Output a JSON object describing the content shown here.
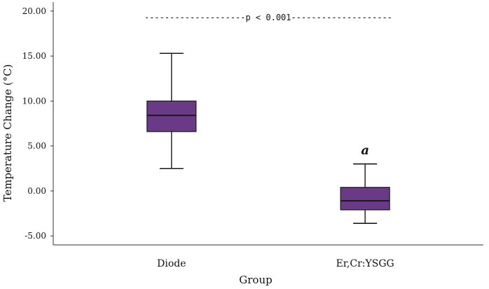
{
  "chart_data": {
    "type": "box",
    "xlabel": "Group",
    "ylabel": "Temperature Change (°C)",
    "ylim": [
      -6.0,
      21.0
    ],
    "yticks": [
      "-5.00",
      "0.00",
      "5.00",
      "10.00",
      "15.00",
      "20.00"
    ],
    "grid": false,
    "categories": [
      "Diode",
      "Er,Cr:YSGG"
    ],
    "boxes": [
      {
        "category": "Diode",
        "whisker_low": 2.5,
        "q1": 6.6,
        "median": 8.4,
        "q3": 10.0,
        "whisker_high": 15.3,
        "annotation": ""
      },
      {
        "category": "Er,Cr:YSGG",
        "whisker_low": -3.6,
        "q1": -2.1,
        "median": -1.1,
        "q3": 0.4,
        "whisker_high": 3.0,
        "annotation": "a"
      }
    ],
    "significance": {
      "text": "p < 0.001",
      "y": 19.3,
      "dash_left": "--------------------",
      "dash_right": "--------------------"
    },
    "colors": {
      "box_fill": "#6b3a87",
      "box_stroke": "#1a1a1a",
      "axis": "#333333"
    }
  }
}
